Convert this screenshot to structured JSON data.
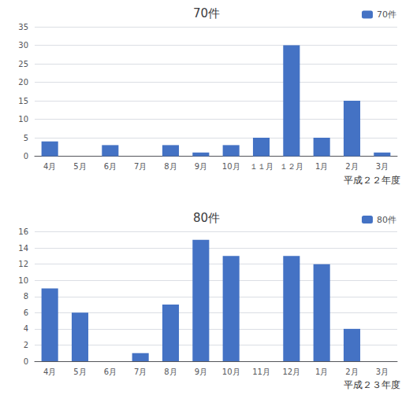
{
  "chart_data": [
    {
      "type": "bar",
      "title": "70件",
      "categories": [
        "4月",
        "5月",
        "6月",
        "7月",
        "8月",
        "9月",
        "10月",
        "１１月",
        "１２月",
        "1月",
        "2月",
        "3月"
      ],
      "series": [
        {
          "name": "70件",
          "color": "#4472C4",
          "values": [
            4,
            0,
            3,
            0,
            3,
            1,
            3,
            5,
            30,
            5,
            15,
            1
          ]
        }
      ],
      "ylim": [
        0,
        35
      ],
      "yticks": [
        0,
        5,
        10,
        15,
        20,
        25,
        30,
        35
      ],
      "grid": true,
      "legend": "upper right",
      "annotations": [
        "平成２２年度"
      ]
    },
    {
      "type": "bar",
      "title": "80件",
      "categories": [
        "4月",
        "5月",
        "6月",
        "7月",
        "8月",
        "9月",
        "10月",
        "11月",
        "12月",
        "1月",
        "2月",
        "3月"
      ],
      "series": [
        {
          "name": "80件",
          "color": "#4472C4",
          "values": [
            9,
            6,
            0,
            1,
            7,
            15,
            13,
            0,
            13,
            12,
            4,
            0
          ]
        }
      ],
      "ylim": [
        0,
        16
      ],
      "yticks": [
        0,
        2,
        4,
        6,
        8,
        10,
        12,
        14,
        16
      ],
      "grid": true,
      "legend": "upper right",
      "annotations": [
        "平成２３年度"
      ]
    }
  ]
}
